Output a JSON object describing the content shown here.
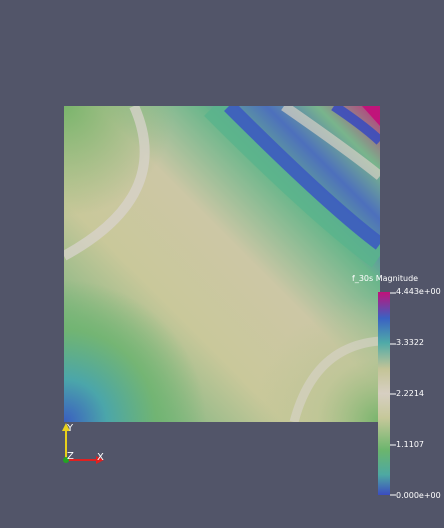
{
  "colorbar": {
    "title": "f_30s Magnitude",
    "ticks": [
      {
        "value": 4.443,
        "label": "4.443e+00"
      },
      {
        "value": 3.3322,
        "label": "3.3322"
      },
      {
        "value": 2.2214,
        "label": "2.2214"
      },
      {
        "value": 1.1107,
        "label": "1.1107"
      },
      {
        "value": 0.0,
        "label": "0.000e+00"
      }
    ],
    "range": [
      0.0,
      4.443
    ],
    "colors": [
      "#3b4cc0",
      "#4ea9a2",
      "#6bb56d",
      "#c6c89a",
      "#d7cfc2",
      "#c4c497",
      "#4faaa8",
      "#3a62c3",
      "#c1127a"
    ]
  },
  "axes": {
    "y_label": "Y",
    "x_label": "X",
    "z_label": "Z",
    "colors": {
      "y": "#e9d11b",
      "x": "#e02020",
      "z": "#23a523"
    }
  },
  "background": "#525569"
}
